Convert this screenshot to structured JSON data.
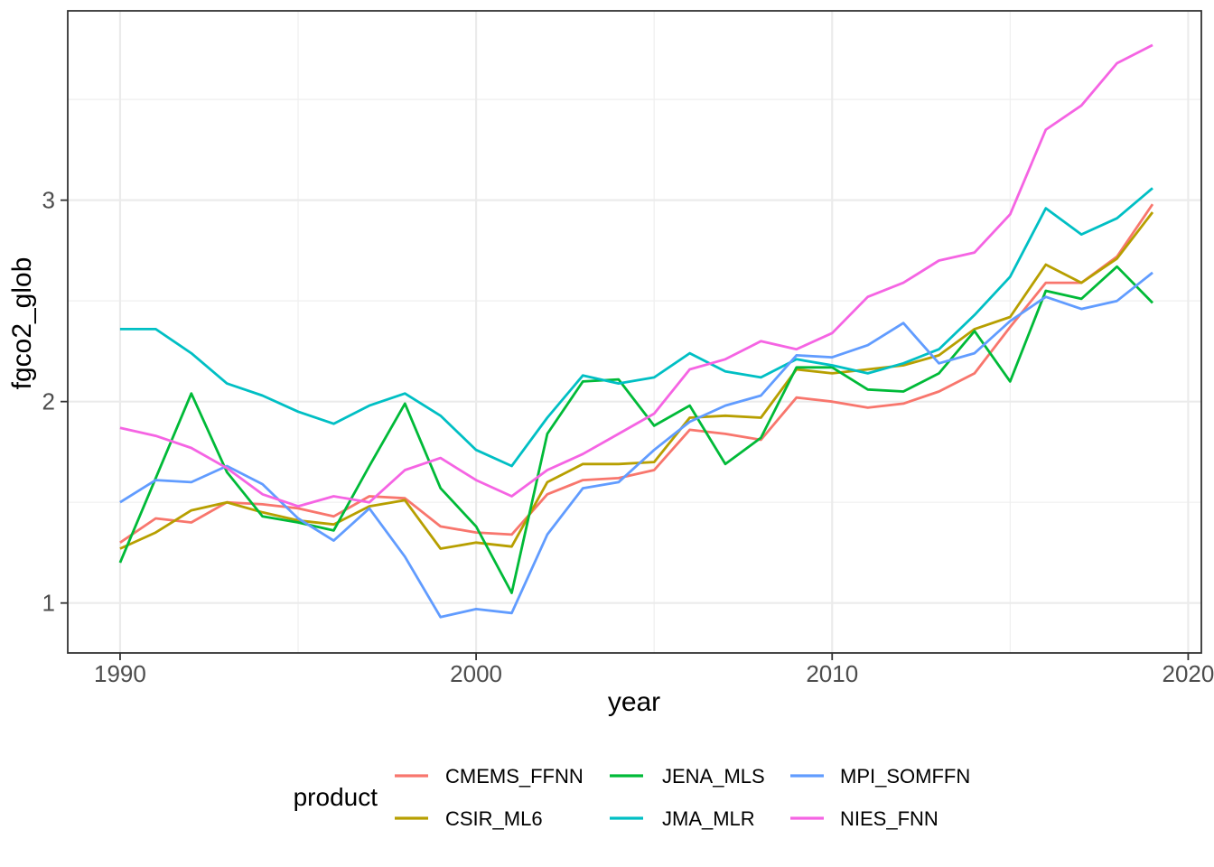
{
  "chart_data": {
    "type": "line",
    "title": "",
    "xlabel": "year",
    "ylabel": "fgco2_glob",
    "legend_title": "product",
    "legend_position": "bottom",
    "grid": true,
    "xlim": [
      1988.53,
      2020.37
    ],
    "ylim": [
      0.752,
      3.94
    ],
    "x_major_ticks": [
      1990,
      2000,
      2010,
      2020
    ],
    "x_minor_ticks": [
      1995,
      2005,
      2015
    ],
    "y_major_ticks": [
      1,
      2,
      3
    ],
    "y_minor_ticks": [
      1.5,
      2.5,
      3.5
    ],
    "x_tick_labels": [
      "1990",
      "2000",
      "2010",
      "2020"
    ],
    "y_tick_labels": [
      "1",
      "2",
      "3"
    ],
    "x": [
      1990,
      1991,
      1992,
      1993,
      1994,
      1995,
      1996,
      1997,
      1998,
      1999,
      2000,
      2001,
      2002,
      2003,
      2004,
      2005,
      2006,
      2007,
      2008,
      2009,
      2010,
      2011,
      2012,
      2013,
      2014,
      2015,
      2016,
      2017,
      2018,
      2019
    ],
    "series": [
      {
        "name": "CMEMS_FFNN",
        "color": "#F8766D",
        "values": [
          1.3,
          1.42,
          1.4,
          1.5,
          1.49,
          1.47,
          1.43,
          1.53,
          1.52,
          1.38,
          1.35,
          1.34,
          1.54,
          1.61,
          1.62,
          1.66,
          1.86,
          1.84,
          1.81,
          2.02,
          2.0,
          1.97,
          1.99,
          2.05,
          2.14,
          2.37,
          2.59,
          2.59,
          2.72,
          2.98
        ]
      },
      {
        "name": "CSIR_ML6",
        "color": "#B79F00",
        "values": [
          1.27,
          1.35,
          1.46,
          1.5,
          1.45,
          1.41,
          1.39,
          1.48,
          1.51,
          1.27,
          1.3,
          1.28,
          1.6,
          1.69,
          1.69,
          1.7,
          1.92,
          1.93,
          1.92,
          2.16,
          2.14,
          2.16,
          2.18,
          2.23,
          2.36,
          2.42,
          2.68,
          2.59,
          2.71,
          2.94
        ]
      },
      {
        "name": "JENA_MLS",
        "color": "#00BA38",
        "values": [
          1.2,
          1.62,
          2.04,
          1.65,
          1.43,
          1.4,
          1.36,
          1.68,
          1.99,
          1.57,
          1.38,
          1.05,
          1.84,
          2.1,
          2.11,
          1.88,
          1.98,
          1.69,
          1.82,
          2.17,
          2.17,
          2.06,
          2.05,
          2.14,
          2.35,
          2.1,
          2.55,
          2.51,
          2.67,
          2.49
        ]
      },
      {
        "name": "JMA_MLR",
        "color": "#00BFC4",
        "values": [
          2.36,
          2.36,
          2.24,
          2.09,
          2.03,
          1.95,
          1.89,
          1.98,
          2.04,
          1.93,
          1.76,
          1.68,
          1.92,
          2.13,
          2.09,
          2.12,
          2.24,
          2.15,
          2.12,
          2.21,
          2.18,
          2.14,
          2.19,
          2.26,
          2.43,
          2.62,
          2.96,
          2.83,
          2.91,
          3.06
        ]
      },
      {
        "name": "MPI_SOMFFN",
        "color": "#619CFF",
        "values": [
          1.5,
          1.61,
          1.6,
          1.68,
          1.59,
          1.42,
          1.31,
          1.47,
          1.23,
          0.93,
          0.97,
          0.95,
          1.34,
          1.57,
          1.6,
          1.76,
          1.9,
          1.98,
          2.03,
          2.23,
          2.22,
          2.28,
          2.39,
          2.19,
          2.24,
          2.4,
          2.52,
          2.46,
          2.5,
          2.64
        ]
      },
      {
        "name": "NIES_FNN",
        "color": "#F564E3",
        "values": [
          1.87,
          1.83,
          1.77,
          1.67,
          1.54,
          1.48,
          1.53,
          1.5,
          1.66,
          1.72,
          1.61,
          1.53,
          1.66,
          1.74,
          1.84,
          1.94,
          2.16,
          2.21,
          2.3,
          2.26,
          2.34,
          2.52,
          2.59,
          2.7,
          2.74,
          2.93,
          3.35,
          3.47,
          3.68,
          3.77
        ]
      }
    ],
    "style": {
      "grid_major_color": "#EBEBEB",
      "grid_minor_color": "#EFEFEF",
      "panel_border_color": "#333333",
      "tick_color": "#333333",
      "axis_text_color": "#4D4D4D",
      "title_text_color": "#000000",
      "background": "#FFFFFF"
    }
  }
}
